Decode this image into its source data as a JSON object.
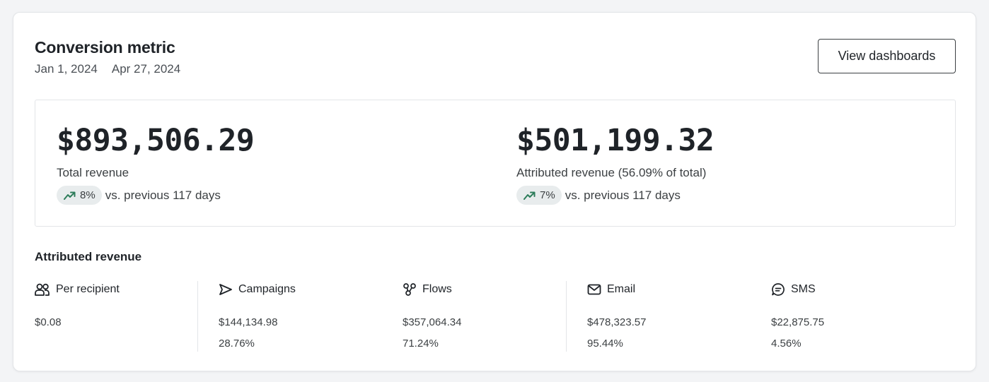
{
  "header": {
    "title": "Conversion metric",
    "date_start": "Jan 1, 2024",
    "date_end": "Apr 27, 2024",
    "view_button_label": "View dashboards"
  },
  "summary": {
    "total": {
      "value": "$893,506.29",
      "label": "Total revenue",
      "trend_percent": "8%",
      "trend_direction": "up",
      "comparison": "vs. previous 117 days"
    },
    "attributed": {
      "value": "$501,199.32",
      "label": "Attributed revenue (56.09% of total)",
      "trend_percent": "7%",
      "trend_direction": "up",
      "comparison": "vs. previous 117 days"
    }
  },
  "attributed_revenue": {
    "title": "Attributed revenue",
    "per_recipient": {
      "label": "Per recipient",
      "icon": "users-icon",
      "value": "$0.08"
    },
    "campaigns": {
      "label": "Campaigns",
      "icon": "send-icon",
      "value": "$144,134.98",
      "percent": "28.76%"
    },
    "flows": {
      "label": "Flows",
      "icon": "flows-icon",
      "value": "$357,064.34",
      "percent": "71.24%"
    },
    "email": {
      "label": "Email",
      "icon": "mail-icon",
      "value": "$478,323.57",
      "percent": "95.44%"
    },
    "sms": {
      "label": "SMS",
      "icon": "message-icon",
      "value": "$22,875.75",
      "percent": "4.56%"
    }
  },
  "colors": {
    "trend_up": "#2e7d5b",
    "pill_bg": "#e8eced",
    "border": "#e3e5e8"
  }
}
